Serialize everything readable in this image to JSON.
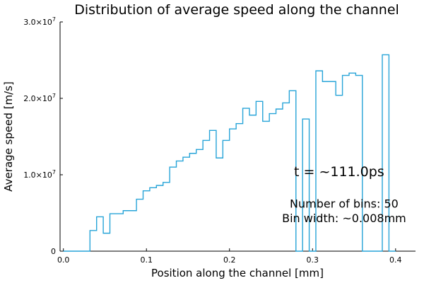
{
  "chart_data": {
    "type": "histogram-step",
    "title": "Distribution of average speed along the channel",
    "xlabel": "Position along the channel [mm]",
    "ylabel": "Average speed [m/s]",
    "xlim": [
      -0.004,
      0.424
    ],
    "ylim": [
      0,
      30000000
    ],
    "x_ticks": [
      0.0,
      0.1,
      0.2,
      0.3,
      0.4
    ],
    "x_tick_labels": [
      "0.0",
      "0.1",
      "0.2",
      "0.3",
      "0.4"
    ],
    "y_ticks": [
      0,
      10000000,
      20000000,
      30000000
    ],
    "y_tick_labels": [
      {
        "mantissa": "0",
        "exp": ""
      },
      {
        "mantissa": "1.0×10",
        "exp": "7"
      },
      {
        "mantissa": "2.0×10",
        "exp": "7"
      },
      {
        "mantissa": "3.0×10",
        "exp": "7"
      }
    ],
    "grid": false,
    "legend": "none",
    "series_color": "#27a4d8",
    "series": [
      {
        "bin_edges": [
          0.0,
          0.008,
          0.016,
          0.024,
          0.032,
          0.04,
          0.048,
          0.056,
          0.064,
          0.072,
          0.08,
          0.088,
          0.096,
          0.104,
          0.112,
          0.12,
          0.128,
          0.136,
          0.144,
          0.152,
          0.16,
          0.168,
          0.176,
          0.184,
          0.192,
          0.2,
          0.208,
          0.216,
          0.224,
          0.232,
          0.24,
          0.248,
          0.256,
          0.264,
          0.272,
          0.28,
          0.288,
          0.296,
          0.304,
          0.312,
          0.32,
          0.328,
          0.336,
          0.344,
          0.352,
          0.36,
          0.368,
          0.376,
          0.384,
          0.392,
          0.4
        ],
        "values": [
          0,
          0,
          0,
          0,
          2700000,
          4500000,
          2350000,
          4900000,
          4900000,
          5300000,
          5300000,
          6800000,
          7900000,
          8300000,
          8600000,
          9000000,
          11000000,
          11800000,
          12300000,
          12800000,
          13300000,
          14500000,
          15800000,
          12200000,
          14500000,
          16000000,
          16700000,
          18700000,
          17800000,
          19600000,
          17000000,
          18000000,
          18600000,
          19400000,
          21000000,
          0,
          17300000,
          0,
          23600000,
          22200000,
          22200000,
          20400000,
          23000000,
          23300000,
          23000000,
          0,
          0,
          0,
          25700000,
          0
        ]
      }
    ],
    "annotations": [
      {
        "text": "t = ~111.0ps",
        "x": 0.332,
        "y": 9800000,
        "size": "large"
      },
      {
        "text": "Number of bins: 50",
        "x": 0.338,
        "y": 5700000,
        "size": "normal"
      },
      {
        "text": "Bin width: ~0.008mm",
        "x": 0.338,
        "y": 3800000,
        "size": "normal"
      }
    ]
  }
}
